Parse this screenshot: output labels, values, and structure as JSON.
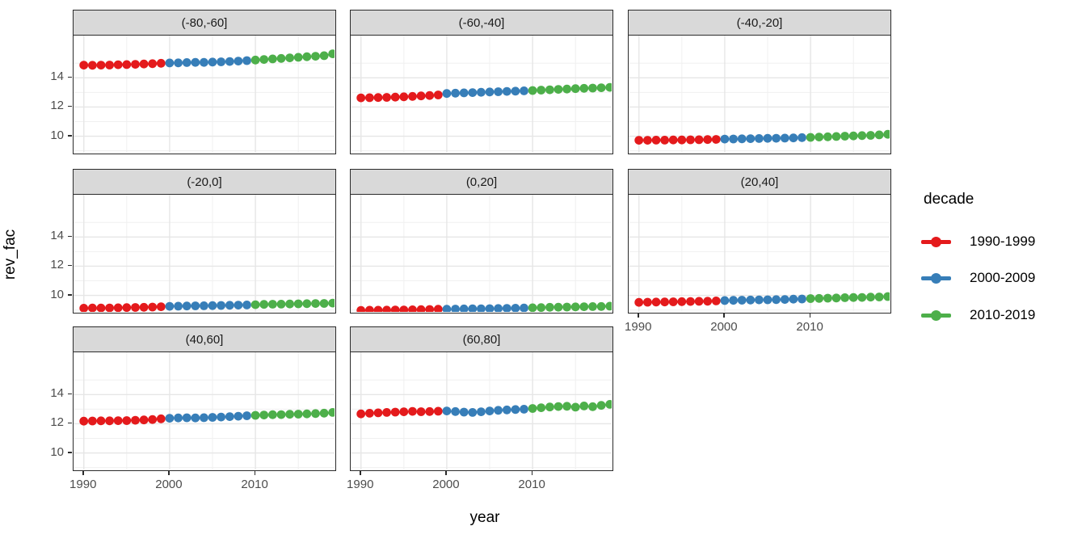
{
  "chart_data": {
    "type": "scatter",
    "title": "",
    "xlabel": "year",
    "ylabel": "rev_fac",
    "x_ticks": [
      1990,
      2000,
      2010
    ],
    "x_minor_ticks": [
      1995,
      2005,
      2015
    ],
    "y_ticks": [
      14,
      12,
      10
    ],
    "y_minor_ticks": [
      9,
      11,
      13,
      15
    ],
    "x_range": [
      1988.8,
      2019.5
    ],
    "y_range": [
      8.7,
      16.9
    ],
    "grid": "on",
    "legend_position": "right",
    "years": [
      1990,
      1991,
      1992,
      1993,
      1994,
      1995,
      1996,
      1997,
      1998,
      1999,
      2000,
      2001,
      2002,
      2003,
      2004,
      2005,
      2006,
      2007,
      2008,
      2009,
      2010,
      2011,
      2012,
      2013,
      2014,
      2015,
      2016,
      2017,
      2018,
      2019
    ],
    "legend": {
      "title": "decade",
      "items": [
        {
          "label": "1990-1999",
          "color": "#E41A1C",
          "start_year": 1990
        },
        {
          "label": "2000-2009",
          "color": "#377EB8",
          "start_year": 2000
        },
        {
          "label": "2010-2019",
          "color": "#4DAF4A",
          "start_year": 2010
        }
      ]
    },
    "facets": [
      {
        "label": "(-80,-60]",
        "row": 0,
        "col": 0,
        "values": [
          14.87,
          14.86,
          14.87,
          14.88,
          14.9,
          14.91,
          14.93,
          14.95,
          14.97,
          15.0,
          15.02,
          15.03,
          15.05,
          15.06,
          15.06,
          15.08,
          15.1,
          15.12,
          15.15,
          15.18,
          15.22,
          15.26,
          15.3,
          15.33,
          15.37,
          15.41,
          15.45,
          15.48,
          15.52,
          15.65
        ]
      },
      {
        "label": "(-60,-40]",
        "row": 0,
        "col": 1,
        "values": [
          12.63,
          12.64,
          12.65,
          12.66,
          12.68,
          12.7,
          12.73,
          12.76,
          12.79,
          12.83,
          12.93,
          12.95,
          12.97,
          12.99,
          13.01,
          13.03,
          13.05,
          13.07,
          13.09,
          13.11,
          13.13,
          13.16,
          13.18,
          13.21,
          13.23,
          13.26,
          13.28,
          13.3,
          13.32,
          13.35
        ]
      },
      {
        "label": "(-40,-20]",
        "row": 0,
        "col": 2,
        "values": [
          9.72,
          9.72,
          9.73,
          9.73,
          9.74,
          9.74,
          9.75,
          9.76,
          9.77,
          9.78,
          9.8,
          9.81,
          9.82,
          9.83,
          9.84,
          9.85,
          9.86,
          9.87,
          9.88,
          9.9,
          9.92,
          9.94,
          9.96,
          9.98,
          10.0,
          10.02,
          10.04,
          10.06,
          10.09,
          10.13
        ]
      },
      {
        "label": "(-20,0]",
        "row": 1,
        "col": 0,
        "values": [
          9.12,
          9.13,
          9.13,
          9.14,
          9.15,
          9.16,
          9.17,
          9.18,
          9.2,
          9.22,
          9.25,
          9.26,
          9.27,
          9.28,
          9.29,
          9.3,
          9.31,
          9.32,
          9.33,
          9.34,
          9.36,
          9.38,
          9.39,
          9.4,
          9.41,
          9.42,
          9.43,
          9.44,
          9.45,
          9.47
        ]
      },
      {
        "label": "(0,20]",
        "row": 1,
        "col": 1,
        "values": [
          8.97,
          8.98,
          8.98,
          8.99,
          9.0,
          9.0,
          9.01,
          9.02,
          9.03,
          9.05,
          9.05,
          9.06,
          9.07,
          9.08,
          9.08,
          9.09,
          9.1,
          9.11,
          9.12,
          9.13,
          9.15,
          9.16,
          9.18,
          9.19,
          9.2,
          9.21,
          9.22,
          9.23,
          9.24,
          9.26
        ]
      },
      {
        "label": "(20,40]",
        "row": 1,
        "col": 2,
        "values": [
          9.52,
          9.53,
          9.54,
          9.55,
          9.56,
          9.57,
          9.58,
          9.59,
          9.6,
          9.62,
          9.65,
          9.66,
          9.67,
          9.68,
          9.69,
          9.7,
          9.71,
          9.72,
          9.74,
          9.75,
          9.78,
          9.79,
          9.81,
          9.82,
          9.84,
          9.85,
          9.86,
          9.88,
          9.89,
          9.92
        ]
      },
      {
        "label": "(40,60]",
        "row": 2,
        "col": 0,
        "values": [
          12.18,
          12.19,
          12.2,
          12.2,
          12.21,
          12.22,
          12.24,
          12.26,
          12.29,
          12.34,
          12.38,
          12.4,
          12.41,
          12.4,
          12.42,
          12.44,
          12.46,
          12.49,
          12.52,
          12.55,
          12.58,
          12.6,
          12.62,
          12.63,
          12.65,
          12.66,
          12.68,
          12.7,
          12.73,
          12.78
        ]
      },
      {
        "label": "(60,80]",
        "row": 2,
        "col": 1,
        "values": [
          12.68,
          12.72,
          12.75,
          12.78,
          12.8,
          12.82,
          12.85,
          12.83,
          12.84,
          12.86,
          12.88,
          12.84,
          12.8,
          12.78,
          12.82,
          12.88,
          12.92,
          12.95,
          12.98,
          13.0,
          13.05,
          13.1,
          13.15,
          13.18,
          13.2,
          13.14,
          13.22,
          13.17,
          13.26,
          13.33
        ]
      }
    ],
    "style": {
      "strip_bg": "#D9D9D9",
      "panel_border": "#2b2b2b",
      "grid_major": "#e6e6e6",
      "grid_minor": "#f0f0f0",
      "tick_text": "#4d4d4d"
    }
  }
}
